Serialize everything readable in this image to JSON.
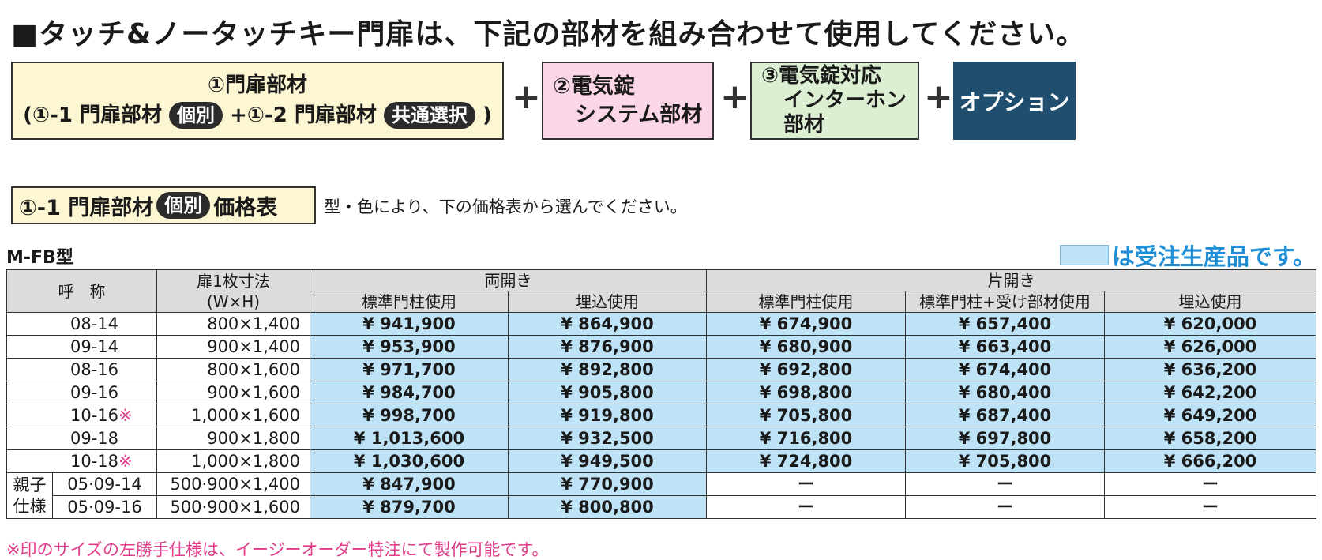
{
  "heading": "■タッチ&ノータッチキー門扉は、下記の部材を組み合わせて使用してください。",
  "boxes": {
    "b1_line1": "①門扉部材",
    "b1_line2_a": "(①-1 門扉部材",
    "b1_pill1": "個別",
    "b1_line2_b": "+①-2 門扉部材",
    "b1_pill2": "共通選択",
    "b1_line2_c": ")",
    "plus": "+",
    "b2_line1": "②電気錠",
    "b2_line2": "システム部材",
    "b3_line1": "③電気錠対応",
    "b3_line2": "インターホン",
    "b3_line3": "部材",
    "b4": "オプション"
  },
  "subheading": {
    "prefix": "①-1 門扉部材",
    "pill": "個別",
    "suffix": "価格表",
    "note": "型・色により、下の価格表から選んでください。"
  },
  "model": "M-FB型",
  "legend": "は受注生産品です。",
  "table": {
    "h_name": "呼　称",
    "h_size1": "扉1枚寸法",
    "h_size2": "(W×H)",
    "h_double": "両開き",
    "h_single": "片開き",
    "h_std": "標準門柱使用",
    "h_embed": "埋込使用",
    "h_std_recv": "標準門柱+受け部材使用",
    "oyako": "親子仕様",
    "mark": "※",
    "rows": [
      {
        "name": "08-14",
        "size": "800×1,400",
        "v": [
          "¥ 941,900",
          "¥ 864,900",
          "¥ 674,900",
          "¥ 657,400",
          "¥ 620,000"
        ]
      },
      {
        "name": "09-14",
        "size": "900×1,400",
        "v": [
          "¥ 953,900",
          "¥ 876,900",
          "¥ 680,900",
          "¥ 663,400",
          "¥ 626,000"
        ]
      },
      {
        "name": "08-16",
        "size": "800×1,600",
        "v": [
          "¥ 971,700",
          "¥ 892,800",
          "¥ 692,800",
          "¥ 674,400",
          "¥ 636,200"
        ]
      },
      {
        "name": "09-16",
        "size": "900×1,600",
        "v": [
          "¥ 984,700",
          "¥ 905,800",
          "¥ 698,800",
          "¥ 680,400",
          "¥ 642,200"
        ]
      },
      {
        "name": "10-16",
        "size": "1,000×1,600",
        "v": [
          "¥ 998,700",
          "¥ 919,800",
          "¥ 705,800",
          "¥ 687,400",
          "¥ 649,200"
        ]
      },
      {
        "name": "09-18",
        "size": "900×1,800",
        "v": [
          "¥ 1,013,600",
          "¥ 932,500",
          "¥ 716,800",
          "¥ 697,800",
          "¥ 658,200"
        ]
      },
      {
        "name": "10-18",
        "size": "1,000×1,800",
        "v": [
          "¥ 1,030,600",
          "¥ 949,500",
          "¥ 724,800",
          "¥ 705,800",
          "¥ 666,200"
        ]
      },
      {
        "name": "05·09-14",
        "size": "500·900×1,400",
        "v": [
          "¥ 847,900",
          "¥ 770,900",
          "ー",
          "ー",
          "ー"
        ]
      },
      {
        "name": "05·09-16",
        "size": "500·900×1,600",
        "v": [
          "¥ 879,700",
          "¥ 800,800",
          "ー",
          "ー",
          "ー"
        ]
      }
    ]
  },
  "footnote": "※印のサイズの左勝手仕様は、イージーオーダー特注にて製作可能です。"
}
